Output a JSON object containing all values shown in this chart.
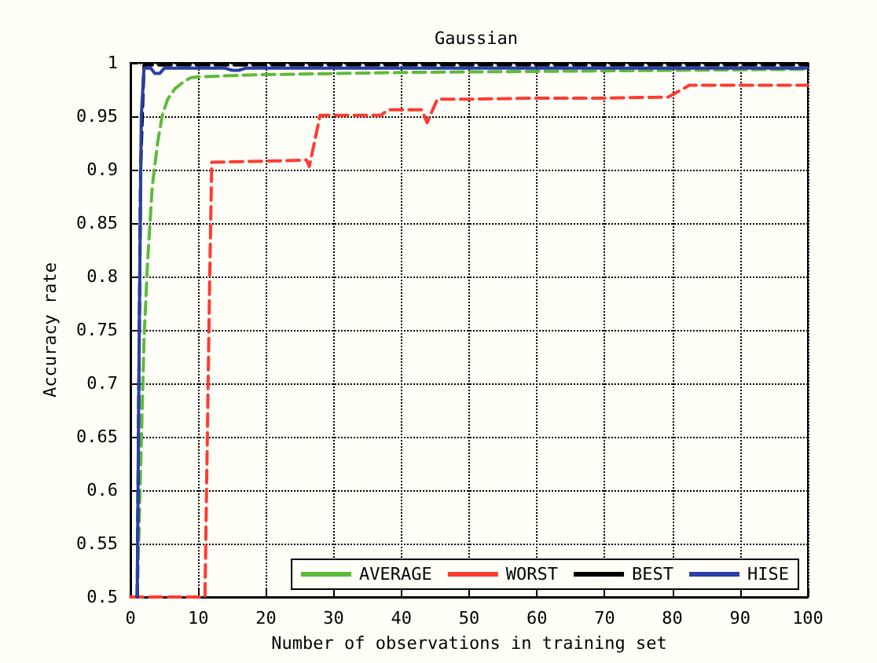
{
  "chart_data": {
    "type": "line",
    "title": "Gaussian",
    "xlabel": "Number of observations in training set",
    "ylabel": "Accuracy rate",
    "xlim": [
      0,
      100
    ],
    "xticks": [
      0,
      10,
      20,
      30,
      40,
      50,
      60,
      70,
      80,
      90,
      100
    ],
    "ylim": [
      0.5,
      1
    ],
    "yticks": [
      0.5,
      0.55,
      0.6,
      0.65,
      0.7,
      0.75,
      0.8,
      0.85,
      0.9,
      0.95,
      1
    ],
    "grid": true,
    "legend": "bottom right",
    "marker": "none",
    "series": [
      {
        "name": "AVERAGE",
        "color": "#5dbb3a",
        "line_style": "dashed",
        "x": [
          1,
          1.5,
          2,
          2.5,
          3.2,
          4,
          4.7,
          5.5,
          6.6,
          8,
          8.9,
          10,
          15,
          20,
          30,
          40,
          60,
          80,
          100
        ],
        "values": [
          0.5,
          0.62,
          0.74,
          0.81,
          0.883,
          0.925,
          0.951,
          0.966,
          0.976,
          0.983,
          0.986,
          0.987,
          0.988,
          0.989,
          0.99,
          0.991,
          0.992,
          0.993,
          0.994
        ]
      },
      {
        "name": "WORST",
        "color": "#ff3b30",
        "line_style": "dashed",
        "x": [
          0,
          11,
          11.7,
          12,
          20,
          26,
          26.4,
          28,
          37,
          38,
          43,
          43.8,
          45.3,
          50,
          60,
          70,
          79.4,
          80,
          82.5,
          90,
          100
        ],
        "values": [
          0.5,
          0.5,
          0.8,
          0.907,
          0.908,
          0.909,
          0.903,
          0.951,
          0.951,
          0.956,
          0.956,
          0.944,
          0.966,
          0.966,
          0.967,
          0.967,
          0.968,
          0.97,
          0.979,
          0.979,
          0.979
        ]
      },
      {
        "name": "BEST",
        "color": "#000000",
        "line_style": "dashed",
        "x": [
          1,
          1.5,
          2,
          10,
          30,
          60,
          100
        ],
        "values": [
          0.5,
          0.9,
          0.998,
          0.998,
          0.998,
          0.998,
          0.998
        ]
      },
      {
        "name": "HISE",
        "color": "#2a3fa8",
        "line_style": "solid",
        "x": [
          1,
          1.3,
          1.6,
          2,
          3,
          3.6,
          4.3,
          5,
          10,
          14,
          15,
          16,
          17,
          30,
          60,
          100
        ],
        "values": [
          0.5,
          0.75,
          0.95,
          0.995,
          0.995,
          0.99,
          0.99,
          0.995,
          0.995,
          0.995,
          0.993,
          0.993,
          0.995,
          0.995,
          0.995,
          0.995
        ]
      }
    ]
  }
}
